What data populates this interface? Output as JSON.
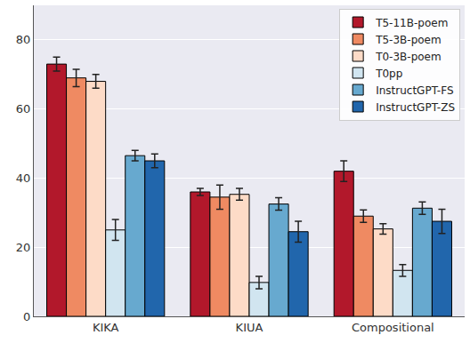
{
  "chart_data": {
    "type": "bar",
    "categories": [
      "KIKA",
      "KIUA",
      "Compositional"
    ],
    "series": [
      {
        "name": "T5-11B-poem",
        "color": "#b2182b",
        "values": [
          73,
          36,
          42
        ],
        "errors": [
          2,
          1,
          3
        ]
      },
      {
        "name": "T5-3B-poem",
        "color": "#ef8a62",
        "values": [
          69,
          34.5,
          29
        ],
        "errors": [
          2.5,
          3.5,
          1.8
        ]
      },
      {
        "name": "T0-3B-poem",
        "color": "#fddbc7",
        "values": [
          68,
          35.3,
          25.3
        ],
        "errors": [
          2,
          1.7,
          1.5
        ]
      },
      {
        "name": "T0pp",
        "color": "#d1e5f0",
        "values": [
          25,
          9.8,
          13.3
        ],
        "errors": [
          3,
          1.8,
          1.7
        ]
      },
      {
        "name": "InstructGPT-FS",
        "color": "#67a9cf",
        "values": [
          46.5,
          32.5,
          31.3
        ],
        "errors": [
          1.5,
          1.8,
          1.8
        ]
      },
      {
        "name": "InstructGPT-ZS",
        "color": "#2166ac",
        "values": [
          45,
          24.5,
          27.5
        ],
        "errors": [
          2,
          3,
          3.5
        ]
      }
    ],
    "ylim": [
      0,
      90
    ],
    "yticks": [
      0,
      20,
      40,
      60,
      80
    ],
    "grid": true,
    "legend": "upper right"
  }
}
